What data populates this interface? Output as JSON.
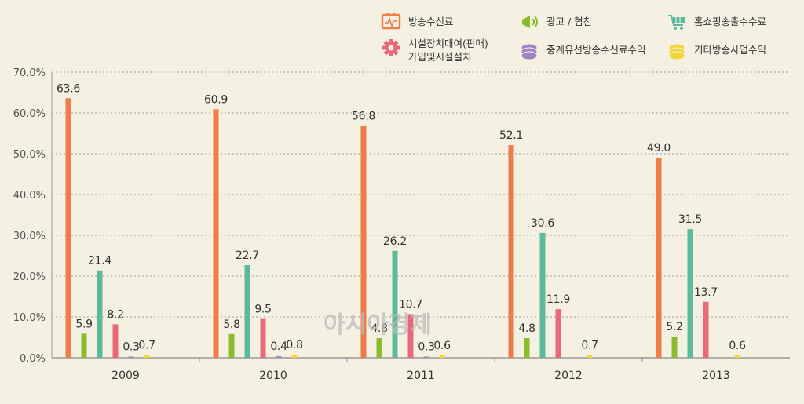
{
  "watermark": "아시아경제",
  "chart_data": {
    "type": "bar",
    "categories": [
      "2009",
      "2010",
      "2011",
      "2012",
      "2013"
    ],
    "ylim": [
      0,
      70
    ],
    "yticks": [
      "0.0%",
      "10.0%",
      "20.0%",
      "30.0%",
      "40.0%",
      "50.0%",
      "60.0%",
      "70.0%"
    ],
    "legend_position": "top-right",
    "series": [
      {
        "name": "방송수신료",
        "color": "#ef7c48",
        "icon": "tv-icon",
        "values": [
          63.6,
          60.9,
          56.8,
          52.1,
          49.0
        ],
        "labels": [
          "63.6",
          "60.9",
          "56.8",
          "52.1",
          "49.0"
        ]
      },
      {
        "name": "광고 / 협찬",
        "color": "#8cbb2e",
        "icon": "megaphone-icon",
        "values": [
          5.9,
          5.8,
          4.8,
          4.8,
          5.2
        ],
        "labels": [
          "5.9",
          "5.8",
          "4.8",
          "4.8",
          "5.2"
        ]
      },
      {
        "name": "홈쇼핑송출수수료",
        "color": "#5cba9c",
        "icon": "shopping-cart-icon",
        "values": [
          21.4,
          22.7,
          26.2,
          30.6,
          31.5
        ],
        "labels": [
          "21.4",
          "22.7",
          "26.2",
          "30.6",
          "31.5"
        ]
      },
      {
        "name": "시설장치대여(판매)\n가입및시설설치",
        "color": "#e8697a",
        "icon": "gear-icon",
        "values": [
          8.2,
          9.5,
          10.7,
          11.9,
          13.7
        ],
        "labels": [
          "8.2",
          "9.5",
          "10.7",
          "11.9",
          "13.7"
        ]
      },
      {
        "name": "중계유선방송수신료수익",
        "color": "#a184c4",
        "icon": "coin-stack-icon",
        "values": [
          0.3,
          0.4,
          0.3,
          0.0,
          0.0
        ],
        "labels": [
          "0.3",
          "0.4",
          "0.3",
          "",
          ""
        ]
      },
      {
        "name": "기타방송사업수익",
        "color": "#f3d43a",
        "icon": "coin-stack-icon",
        "values": [
          0.7,
          0.8,
          0.6,
          0.7,
          0.6
        ],
        "labels": [
          "0.7",
          "0.8",
          "0.6",
          "0.7",
          "0.6"
        ]
      }
    ]
  }
}
